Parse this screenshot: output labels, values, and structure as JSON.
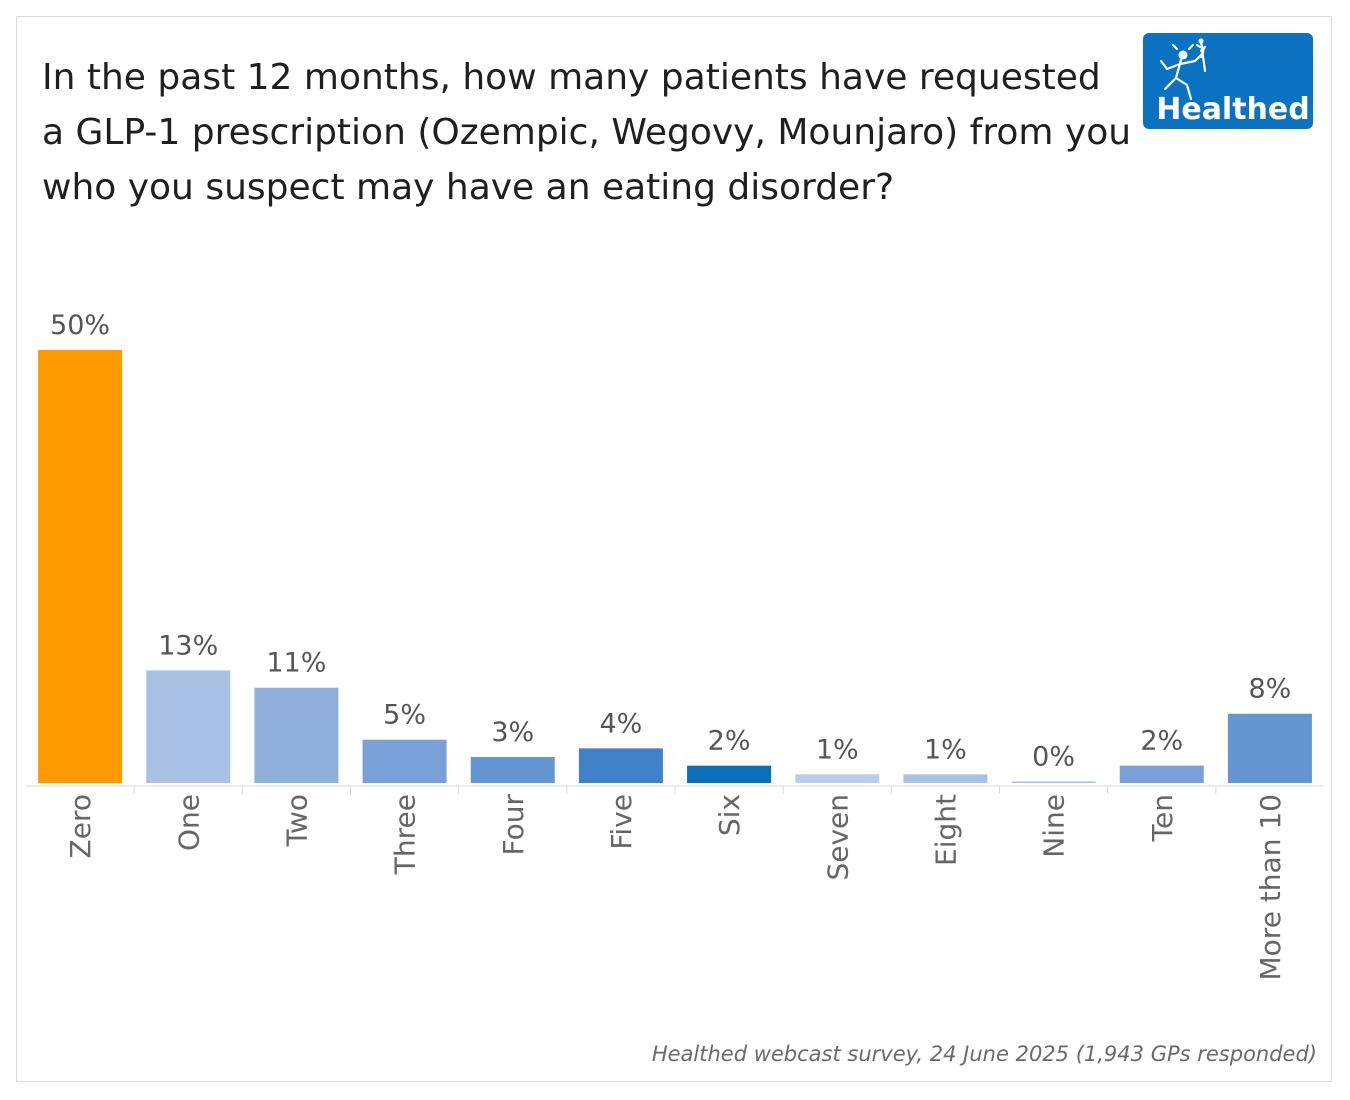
{
  "title": "In the past 12 months, how many patients have requested a GLP-1 prescription (Ozempic, Wegovy, Mounjaro) from you who you suspect may have an eating disorder?",
  "logo": {
    "text": "Healthed",
    "icon": "hermes-running-figure-icon",
    "background": "#0a72c0"
  },
  "source": "Healthed webcast survey, 24 June 2025 (1,943 GPs responded)",
  "chart_data": {
    "type": "bar",
    "title": "In the past 12 months, how many patients have requested a GLP-1 prescription (Ozempic, Wegovy, Mounjaro) from you who you suspect may have an eating disorder?",
    "xlabel": "",
    "ylabel": "",
    "ylim": [
      0,
      50
    ],
    "grid": false,
    "categories": [
      "Zero",
      "One",
      "Two",
      "Three",
      "Four",
      "Five",
      "Six",
      "Seven",
      "Eight",
      "Nine",
      "Ten",
      "More than 10"
    ],
    "values": [
      50,
      13,
      11,
      5,
      3,
      4,
      2,
      1,
      1,
      0,
      2,
      8
    ],
    "labels": [
      "50%",
      "13%",
      "11%",
      "5%",
      "3%",
      "4%",
      "2%",
      "1%",
      "1%",
      "0%",
      "2%",
      "8%"
    ],
    "colors": [
      "#ff9a00",
      "#a9c1e4",
      "#8fafdb",
      "#7aa1d7",
      "#6496d1",
      "#3f82c8",
      "#0b6fba",
      "#b9cdea",
      "#a9c1e4",
      "#a4bde3",
      "#7aa1d7",
      "#6496d1"
    ]
  }
}
